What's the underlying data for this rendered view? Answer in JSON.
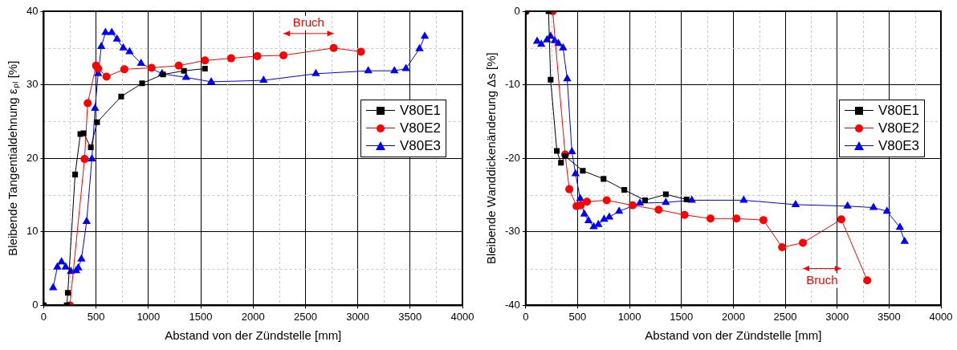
{
  "chart_data": [
    {
      "type": "line",
      "xlabel": "Abstand von der Zündstelle [mm]",
      "ylabel": "Bleibende Tangentialdehnung εₚₗ [%]",
      "xlim": [
        0,
        4000
      ],
      "xticks": [
        0,
        500,
        1000,
        1500,
        2000,
        2500,
        3000,
        3500,
        4000
      ],
      "ylim": [
        0,
        40
      ],
      "yticks": [
        0,
        10,
        20,
        30,
        40
      ],
      "grid": true,
      "legend": "right",
      "line_style": "solid",
      "series": [
        {
          "name": "V80E1",
          "color": "#000000",
          "marker": "square",
          "x": [
            0,
            220,
            230,
            300,
            350,
            380,
            450,
            510,
            740,
            940,
            1140,
            1340,
            1540
          ],
          "values": [
            0,
            0,
            1.7,
            17.8,
            23.3,
            23.4,
            21.5,
            24.9,
            28.4,
            30.2,
            31.4,
            31.9,
            32.2
          ]
        },
        {
          "name": "V80E2",
          "color": "#ff0000",
          "marker": "circle",
          "x": [
            250,
            390,
            420,
            500,
            520,
            600,
            770,
            1030,
            1290,
            1540,
            1790,
            2040,
            2290,
            2770,
            3030
          ],
          "values": [
            0,
            19.9,
            27.5,
            32.6,
            32.2,
            31.1,
            32.1,
            32.3,
            32.6,
            33.3,
            33.6,
            33.9,
            34.0,
            35.0,
            34.5
          ]
        },
        {
          "name": "V80E3",
          "color": "#0000ff",
          "marker": "triangle",
          "x": [
            90,
            130,
            170,
            210,
            260,
            310,
            330,
            360,
            410,
            460,
            490,
            520,
            550,
            590,
            650,
            700,
            760,
            820,
            930,
            1130,
            1360,
            1600,
            2100,
            2600,
            3100,
            3350,
            3460,
            3590,
            3640
          ],
          "values": [
            2.4,
            5.2,
            5.9,
            5.2,
            4.6,
            4.7,
            5.1,
            6.3,
            11.4,
            19.9,
            26.8,
            31.5,
            35.2,
            37.1,
            37.1,
            36.2,
            35.0,
            34.5,
            32.9,
            31.5,
            31.0,
            30.4,
            30.6,
            31.5,
            31.9,
            31.9,
            32.2,
            34.9,
            36.6
          ]
        }
      ],
      "annotations": [
        "Bruch"
      ]
    },
    {
      "type": "line",
      "xlabel": "Abstand von der Zündstelle [mm]",
      "ylabel": "Bleibende Wanddickenänderung Δs [%]",
      "xlim": [
        0,
        4000
      ],
      "xticks": [
        0,
        500,
        1000,
        1500,
        2000,
        2500,
        3000,
        3500,
        4000
      ],
      "ylim": [
        -40,
        0
      ],
      "yticks": [
        -40,
        -30,
        -20,
        -10,
        0
      ],
      "grid": true,
      "legend": "right",
      "line_style": "solid",
      "series": [
        {
          "name": "V80E1",
          "color": "#000000",
          "marker": "square",
          "x": [
            0,
            220,
            240,
            300,
            340,
            380,
            550,
            750,
            950,
            1150,
            1350,
            1550
          ],
          "values": [
            0,
            0,
            -9.3,
            -19.0,
            -20.6,
            -19.7,
            -21.7,
            -22.8,
            -24.3,
            -25.7,
            -24.9,
            -25.6
          ]
        },
        {
          "name": "V80E2",
          "color": "#ff0000",
          "marker": "circle",
          "x": [
            0,
            260,
            380,
            420,
            490,
            530,
            590,
            780,
            1030,
            1280,
            1530,
            1780,
            2030,
            2290,
            2470,
            2670,
            3040,
            3290
          ],
          "values": [
            0,
            0,
            -19.5,
            -24.2,
            -26.5,
            -26.4,
            -25.9,
            -25.7,
            -26.4,
            -27.0,
            -27.7,
            -28.2,
            -28.2,
            -28.4,
            -32.1,
            -31.5,
            -28.3,
            -36.6
          ]
        },
        {
          "name": "V80E3",
          "color": "#0000ff",
          "marker": "triangle",
          "x": [
            110,
            150,
            205,
            240,
            280,
            315,
            360,
            400,
            445,
            480,
            525,
            565,
            605,
            655,
            700,
            755,
            805,
            900,
            1100,
            1350,
            1600,
            2100,
            2600,
            3100,
            3350,
            3480,
            3605,
            3650
          ],
          "values": [
            -4.1,
            -4.5,
            -3.9,
            -3.4,
            -4.0,
            -4.4,
            -5.0,
            -9.2,
            -19.1,
            -22.1,
            -25.5,
            -27.6,
            -28.5,
            -29.3,
            -29.0,
            -28.3,
            -28.0,
            -27.2,
            -26.1,
            -26.0,
            -25.7,
            -25.7,
            -26.3,
            -26.5,
            -26.7,
            -27.2,
            -29.4,
            -31.3
          ]
        }
      ],
      "annotations": [
        "Bruch"
      ]
    }
  ]
}
